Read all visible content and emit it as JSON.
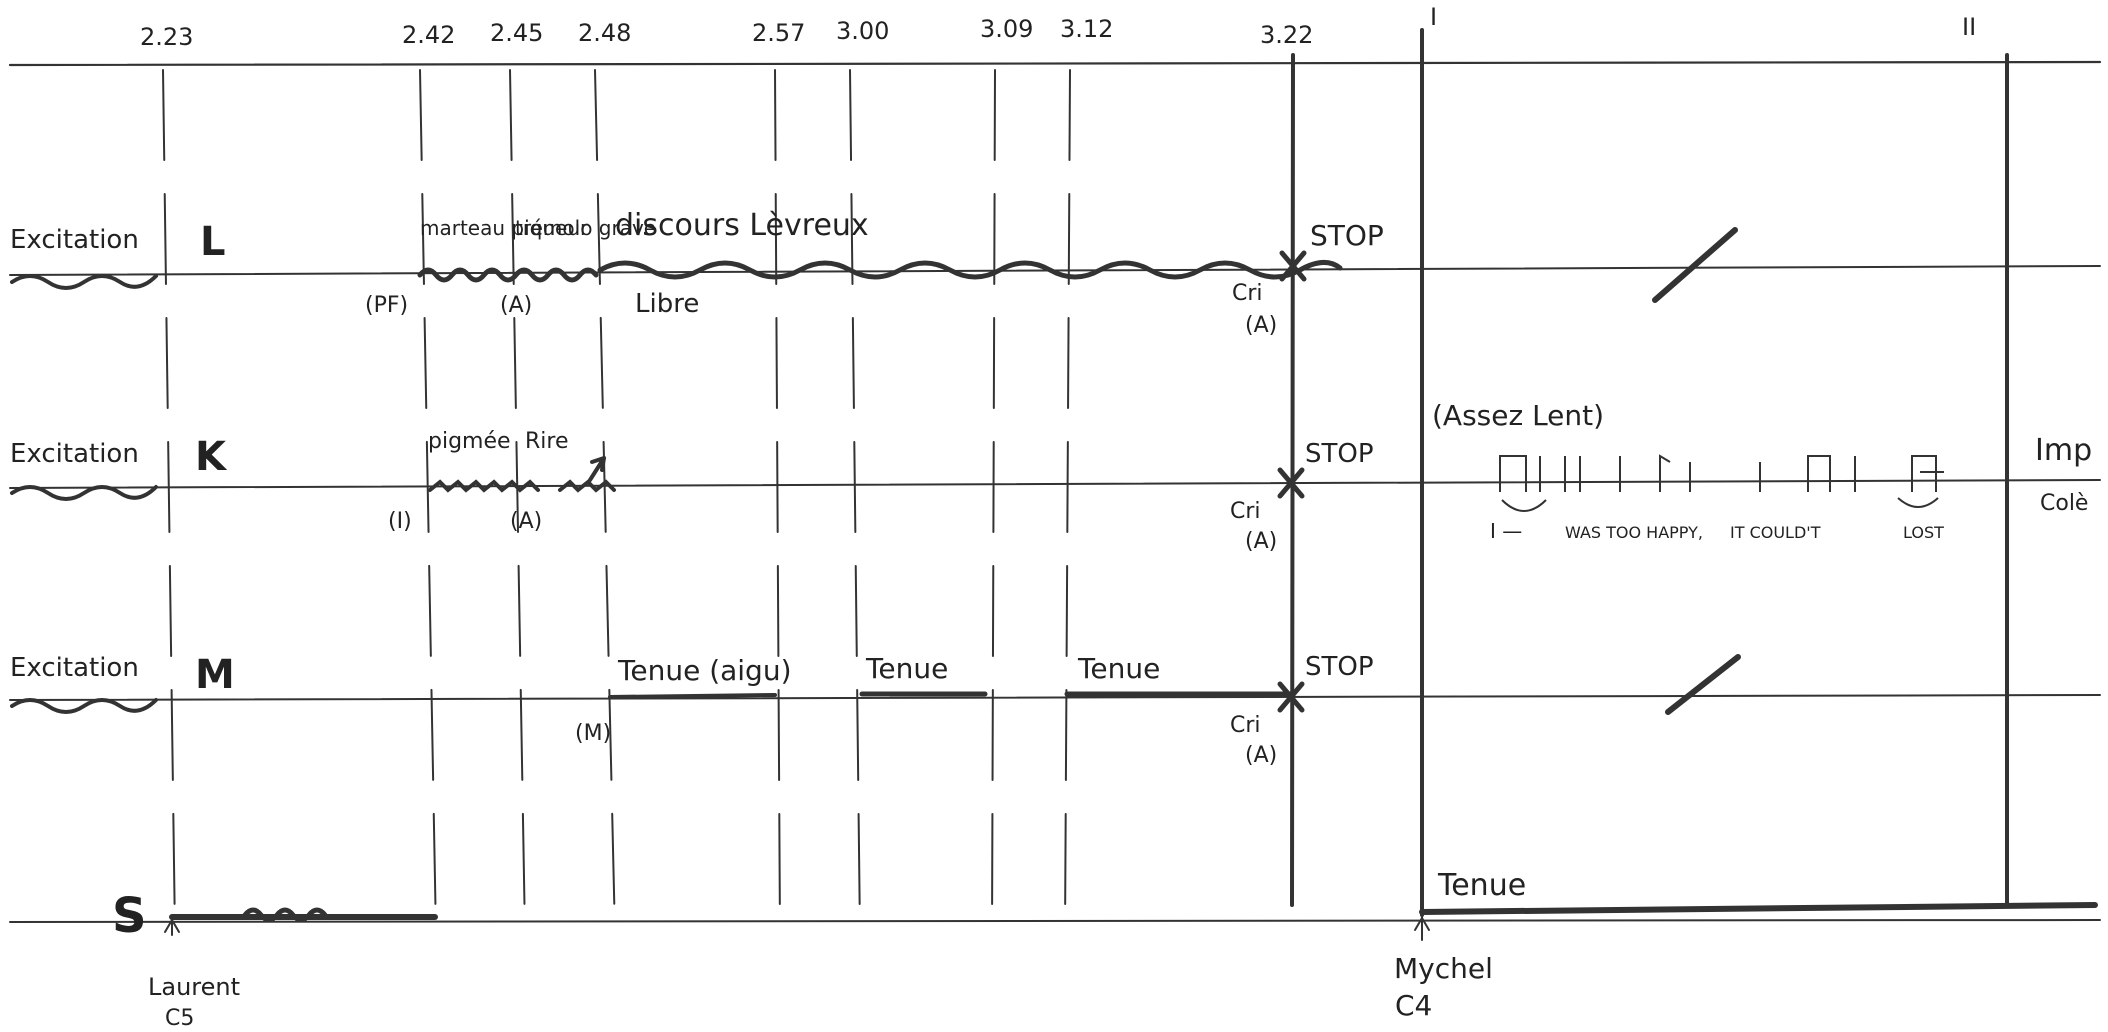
{
  "timestamps": [
    "2.23",
    "2.42",
    "2.45",
    "2.48",
    "2.57",
    "3.00",
    "3.09",
    "3.12",
    "3.22"
  ],
  "section_marks": [
    "I",
    "II"
  ],
  "staves": [
    {
      "letter": "L",
      "excitation_label": "Excitation",
      "segment_labels": [
        "marteau piqueur",
        "trémolo grave",
        "discours Lèvreux"
      ],
      "sub_label": "Libre",
      "start_marks": [
        "(PF)",
        "(A)"
      ],
      "cri_label": "Cri",
      "cri_sub": "(A)",
      "stop_label": "STOP"
    },
    {
      "letter": "K",
      "excitation_label": "Excitation",
      "segment_labels": [
        "pigmée",
        "Rire"
      ],
      "start_marks": [
        "(I)",
        "(A)"
      ],
      "cri_label": "Cri",
      "cri_sub": "(A)",
      "stop_label": "STOP",
      "tempo_label": "(Assez Lent)",
      "lyric": [
        "I —",
        "WAS TOO HAPPY,",
        "IT COULD'T",
        "LOST"
      ],
      "next_labels": [
        "Imp",
        "Colè"
      ]
    },
    {
      "letter": "M",
      "excitation_label": "Excitation",
      "segment_labels": [
        "Tenue (aigu)",
        "Tenue",
        "Tenue"
      ],
      "start_marks": [
        "(M)"
      ],
      "cri_label": "Cri",
      "cri_sub": "(A)",
      "stop_label": "STOP"
    },
    {
      "letter": "S",
      "segment_labels": [
        "Tenue"
      ]
    }
  ],
  "cues": [
    {
      "name": "Laurent",
      "code": "C5"
    },
    {
      "name": "Mychel",
      "code": "C4"
    }
  ]
}
